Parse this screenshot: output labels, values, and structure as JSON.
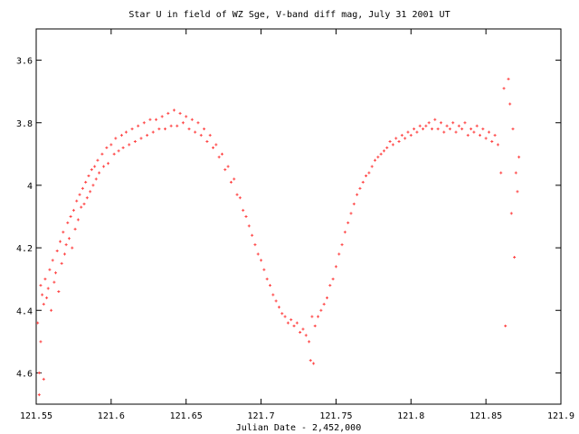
{
  "chart_data": {
    "type": "scatter",
    "title": "Star U in field of WZ Sge, V-band diff mag, July 31 2001 UT",
    "xlabel": "Julian Date - 2,452,000",
    "ylabel": "",
    "xlim": [
      121.55,
      121.9
    ],
    "ylim": [
      3.5,
      4.7
    ],
    "y_inverted": true,
    "x_ticks": [
      "121.55",
      "121.6",
      "121.65",
      "121.7",
      "121.75",
      "121.8",
      "121.85",
      "121.9"
    ],
    "x_tick_values": [
      121.55,
      121.6,
      121.65,
      121.7,
      121.75,
      121.8,
      121.85,
      121.9
    ],
    "y_ticks": [
      "3.6",
      "3.8",
      "4",
      "4.2",
      "4.4",
      "4.6"
    ],
    "y_tick_values": [
      3.6,
      3.8,
      4.0,
      4.2,
      4.4,
      4.6
    ],
    "grid": false,
    "marker": "plus",
    "marker_color": "#ff4444",
    "series": [
      {
        "values": [
          [
            121.551,
            4.44
          ],
          [
            121.552,
            4.6
          ],
          [
            121.552,
            4.67
          ],
          [
            121.553,
            4.32
          ],
          [
            121.553,
            4.5
          ],
          [
            121.554,
            4.35
          ],
          [
            121.555,
            4.38
          ],
          [
            121.555,
            4.62
          ],
          [
            121.556,
            4.3
          ],
          [
            121.557,
            4.36
          ],
          [
            121.558,
            4.33
          ],
          [
            121.559,
            4.27
          ],
          [
            121.56,
            4.4
          ],
          [
            121.561,
            4.24
          ],
          [
            121.562,
            4.31
          ],
          [
            121.563,
            4.28
          ],
          [
            121.564,
            4.21
          ],
          [
            121.565,
            4.34
          ],
          [
            121.566,
            4.18
          ],
          [
            121.567,
            4.25
          ],
          [
            121.568,
            4.15
          ],
          [
            121.569,
            4.22
          ],
          [
            121.57,
            4.19
          ],
          [
            121.571,
            4.12
          ],
          [
            121.572,
            4.17
          ],
          [
            121.573,
            4.1
          ],
          [
            121.574,
            4.2
          ],
          [
            121.575,
            4.08
          ],
          [
            121.576,
            4.14
          ],
          [
            121.577,
            4.05
          ],
          [
            121.578,
            4.11
          ],
          [
            121.579,
            4.03
          ],
          [
            121.58,
            4.07
          ],
          [
            121.581,
            4.01
          ],
          [
            121.582,
            4.06
          ],
          [
            121.583,
            3.99
          ],
          [
            121.584,
            4.04
          ],
          [
            121.585,
            3.97
          ],
          [
            121.586,
            4.02
          ],
          [
            121.587,
            3.95
          ],
          [
            121.588,
            4.0
          ],
          [
            121.589,
            3.94
          ],
          [
            121.59,
            3.98
          ],
          [
            121.591,
            3.92
          ],
          [
            121.592,
            3.96
          ],
          [
            121.594,
            3.9
          ],
          [
            121.595,
            3.94
          ],
          [
            121.597,
            3.88
          ],
          [
            121.598,
            3.93
          ],
          [
            121.6,
            3.87
          ],
          [
            121.602,
            3.9
          ],
          [
            121.603,
            3.85
          ],
          [
            121.605,
            3.89
          ],
          [
            121.607,
            3.84
          ],
          [
            121.608,
            3.88
          ],
          [
            121.61,
            3.83
          ],
          [
            121.612,
            3.87
          ],
          [
            121.614,
            3.82
          ],
          [
            121.616,
            3.86
          ],
          [
            121.618,
            3.81
          ],
          [
            121.62,
            3.85
          ],
          [
            121.622,
            3.8
          ],
          [
            121.624,
            3.84
          ],
          [
            121.626,
            3.79
          ],
          [
            121.628,
            3.83
          ],
          [
            121.63,
            3.79
          ],
          [
            121.632,
            3.82
          ],
          [
            121.634,
            3.78
          ],
          [
            121.636,
            3.82
          ],
          [
            121.638,
            3.77
          ],
          [
            121.64,
            3.81
          ],
          [
            121.642,
            3.76
          ],
          [
            121.644,
            3.81
          ],
          [
            121.646,
            3.77
          ],
          [
            121.648,
            3.8
          ],
          [
            121.65,
            3.78
          ],
          [
            121.652,
            3.82
          ],
          [
            121.654,
            3.79
          ],
          [
            121.656,
            3.83
          ],
          [
            121.658,
            3.8
          ],
          [
            121.66,
            3.84
          ],
          [
            121.662,
            3.82
          ],
          [
            121.664,
            3.86
          ],
          [
            121.666,
            3.84
          ],
          [
            121.668,
            3.88
          ],
          [
            121.67,
            3.87
          ],
          [
            121.672,
            3.91
          ],
          [
            121.674,
            3.9
          ],
          [
            121.676,
            3.95
          ],
          [
            121.678,
            3.94
          ],
          [
            121.68,
            3.99
          ],
          [
            121.682,
            3.98
          ],
          [
            121.684,
            4.03
          ],
          [
            121.686,
            4.04
          ],
          [
            121.688,
            4.08
          ],
          [
            121.69,
            4.1
          ],
          [
            121.692,
            4.13
          ],
          [
            121.694,
            4.16
          ],
          [
            121.696,
            4.19
          ],
          [
            121.698,
            4.22
          ],
          [
            121.7,
            4.24
          ],
          [
            121.702,
            4.27
          ],
          [
            121.704,
            4.3
          ],
          [
            121.706,
            4.32
          ],
          [
            121.708,
            4.35
          ],
          [
            121.71,
            4.37
          ],
          [
            121.712,
            4.39
          ],
          [
            121.714,
            4.41
          ],
          [
            121.716,
            4.42
          ],
          [
            121.718,
            4.44
          ],
          [
            121.72,
            4.43
          ],
          [
            121.722,
            4.45
          ],
          [
            121.724,
            4.44
          ],
          [
            121.726,
            4.47
          ],
          [
            121.728,
            4.46
          ],
          [
            121.73,
            4.48
          ],
          [
            121.732,
            4.5
          ],
          [
            121.733,
            4.56
          ],
          [
            121.734,
            4.42
          ],
          [
            121.735,
            4.57
          ],
          [
            121.736,
            4.45
          ],
          [
            121.738,
            4.42
          ],
          [
            121.74,
            4.4
          ],
          [
            121.742,
            4.38
          ],
          [
            121.744,
            4.36
          ],
          [
            121.746,
            4.32
          ],
          [
            121.748,
            4.3
          ],
          [
            121.75,
            4.26
          ],
          [
            121.752,
            4.22
          ],
          [
            121.754,
            4.19
          ],
          [
            121.756,
            4.15
          ],
          [
            121.758,
            4.12
          ],
          [
            121.76,
            4.09
          ],
          [
            121.762,
            4.06
          ],
          [
            121.764,
            4.03
          ],
          [
            121.766,
            4.01
          ],
          [
            121.768,
            3.99
          ],
          [
            121.77,
            3.97
          ],
          [
            121.772,
            3.96
          ],
          [
            121.774,
            3.94
          ],
          [
            121.776,
            3.92
          ],
          [
            121.778,
            3.91
          ],
          [
            121.78,
            3.9
          ],
          [
            121.782,
            3.89
          ],
          [
            121.784,
            3.88
          ],
          [
            121.786,
            3.86
          ],
          [
            121.788,
            3.87
          ],
          [
            121.79,
            3.85
          ],
          [
            121.792,
            3.86
          ],
          [
            121.794,
            3.84
          ],
          [
            121.796,
            3.85
          ],
          [
            121.798,
            3.83
          ],
          [
            121.8,
            3.84
          ],
          [
            121.802,
            3.82
          ],
          [
            121.804,
            3.83
          ],
          [
            121.806,
            3.81
          ],
          [
            121.808,
            3.82
          ],
          [
            121.81,
            3.81
          ],
          [
            121.812,
            3.8
          ],
          [
            121.814,
            3.82
          ],
          [
            121.816,
            3.79
          ],
          [
            121.818,
            3.82
          ],
          [
            121.82,
            3.8
          ],
          [
            121.822,
            3.83
          ],
          [
            121.824,
            3.81
          ],
          [
            121.826,
            3.82
          ],
          [
            121.828,
            3.8
          ],
          [
            121.83,
            3.83
          ],
          [
            121.832,
            3.81
          ],
          [
            121.834,
            3.82
          ],
          [
            121.836,
            3.8
          ],
          [
            121.838,
            3.84
          ],
          [
            121.84,
            3.82
          ],
          [
            121.842,
            3.83
          ],
          [
            121.844,
            3.81
          ],
          [
            121.846,
            3.84
          ],
          [
            121.848,
            3.82
          ],
          [
            121.85,
            3.85
          ],
          [
            121.852,
            3.83
          ],
          [
            121.854,
            3.86
          ],
          [
            121.856,
            3.84
          ],
          [
            121.858,
            3.87
          ],
          [
            121.86,
            3.96
          ],
          [
            121.862,
            3.69
          ],
          [
            121.863,
            4.45
          ],
          [
            121.865,
            3.66
          ],
          [
            121.866,
            3.74
          ],
          [
            121.867,
            4.09
          ],
          [
            121.868,
            3.82
          ],
          [
            121.869,
            4.23
          ],
          [
            121.87,
            3.96
          ],
          [
            121.871,
            4.02
          ],
          [
            121.872,
            3.91
          ]
        ]
      }
    ]
  }
}
